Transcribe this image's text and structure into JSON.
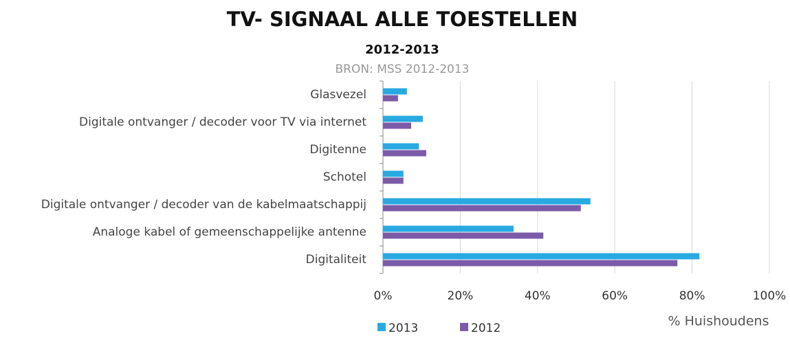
{
  "chart_data": {
    "type": "hbar",
    "title": "TV- SIGNAAL ALLE TOESTELLEN",
    "subtitle": "2012-2013",
    "source": "BRON: MSS 2012-2013",
    "x_label": "% Huishoudens",
    "categories": [
      "Glasvezel",
      "Digitale ontvanger / decoder voor TV via internet",
      "Digitenne",
      "Schotel",
      "Digitale ontvanger / decoder van de kabelmaatschappij",
      "Analoge kabel of gemeenschappelijke antenne",
      "Digitaliteit"
    ],
    "series": [
      {
        "name": "2013",
        "color": "#29a9e1",
        "values": [
          6.2,
          10.3,
          9.3,
          5.3,
          53.7,
          33.8,
          81.9
        ]
      },
      {
        "name": "2012",
        "color": "#7b5ba8",
        "values": [
          3.9,
          7.3,
          11.2,
          5.3,
          51.2,
          41.5,
          76.2
        ]
      }
    ],
    "xlim": [
      0,
      100
    ],
    "xticks": [
      {
        "value": 0,
        "label": "0%"
      },
      {
        "value": 20,
        "label": "20%"
      },
      {
        "value": 40,
        "label": "40%"
      },
      {
        "value": 60,
        "label": "60%"
      },
      {
        "value": 80,
        "label": "80%"
      },
      {
        "value": 100,
        "label": "100%"
      }
    ],
    "grid": true,
    "legend": "bottom"
  }
}
